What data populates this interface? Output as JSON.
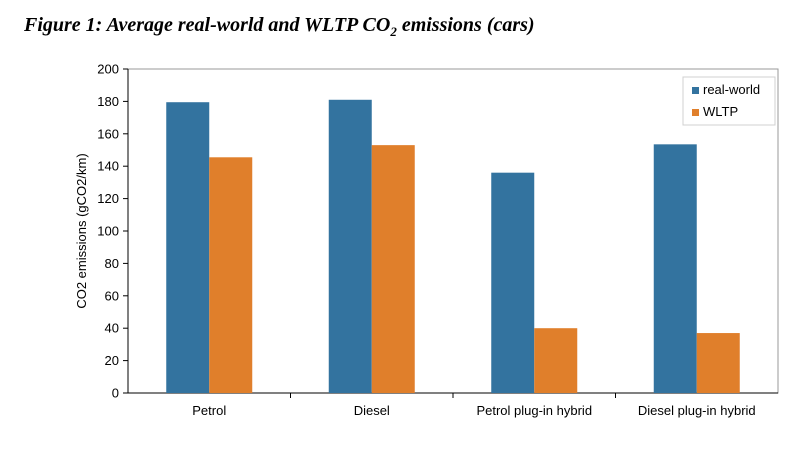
{
  "figure": {
    "title_main": "Figure 1: Average real-world and WLTP CO",
    "title_sub": "2",
    "title_tail": " emissions (cars)"
  },
  "chart_data": {
    "type": "bar",
    "categories": [
      "Petrol",
      "Diesel",
      "Petrol plug-in hybrid",
      "Diesel plug-in hybrid"
    ],
    "series": [
      {
        "name": "real-world",
        "color": "#33739f",
        "values": [
          179.5,
          181,
          136,
          153.5
        ]
      },
      {
        "name": "WLTP",
        "color": "#e07f2b",
        "values": [
          145.5,
          153,
          40,
          37
        ]
      }
    ],
    "ylabel": "CO2 emissions (gCO2/km)",
    "xlabel": "",
    "ylim": [
      0,
      200
    ],
    "yticks": [
      0,
      20,
      40,
      60,
      80,
      100,
      120,
      140,
      160,
      180,
      200
    ],
    "grid": false,
    "legend": "top-right"
  }
}
